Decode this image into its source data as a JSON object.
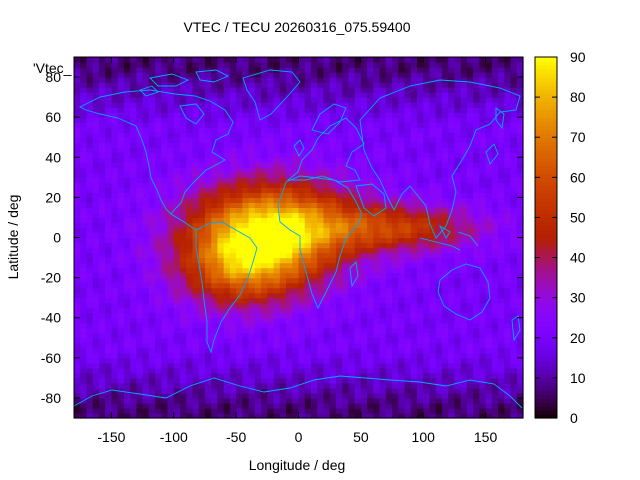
{
  "chart_data": {
    "type": "heatmap",
    "title": "VTEC / TECU 20260316_075.59400",
    "xlabel": "Longitude / deg",
    "ylabel": "Latitude / deg",
    "overlay_label": "'Vtec_",
    "xlim": [
      -180,
      180
    ],
    "ylim": [
      -90,
      90
    ],
    "x_ticks": [
      -150,
      -100,
      -50,
      0,
      50,
      100,
      150
    ],
    "y_ticks": [
      -80,
      -60,
      -40,
      -20,
      0,
      20,
      40,
      60,
      80
    ],
    "colorbar": {
      "min": 0,
      "max": 90,
      "ticks": [
        0,
        10,
        20,
        30,
        40,
        50,
        60,
        70,
        80,
        90
      ]
    },
    "grid": false,
    "overlays": [
      "coastlines"
    ],
    "colors": {
      "coastline": "#00a8ff"
    },
    "features": [
      {
        "kind": "ridge",
        "lat": 5,
        "lon_center": -20,
        "lon_sigma": 45,
        "lat_sigma": 16,
        "peak": 85
      },
      {
        "kind": "southern_crest",
        "lat": -15,
        "lon_center": -45,
        "lon_sigma": 35,
        "lat_sigma": 14,
        "peak": 60
      },
      {
        "kind": "eastern_tail",
        "lat": 5,
        "lon_center": 80,
        "lon_sigma": 45,
        "lat_sigma": 8,
        "peak": 52
      },
      {
        "kind": "background",
        "value": 20
      },
      {
        "kind": "polar_low",
        "value": 7
      }
    ]
  }
}
